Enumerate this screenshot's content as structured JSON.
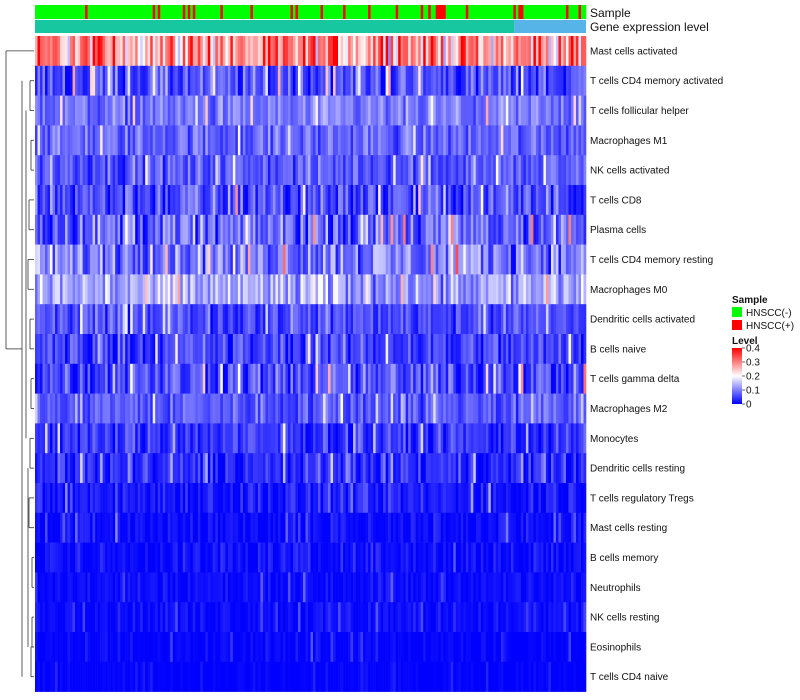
{
  "chart_data": {
    "type": "heatmap",
    "title": "",
    "column_annotations": [
      "Sample",
      "Gene expression level"
    ],
    "rows": [
      {
        "label": "Mast cells activated",
        "mean": 0.28,
        "spread": 0.12
      },
      {
        "label": "T cells CD4 memory activated",
        "mean": 0.06,
        "spread": 0.07
      },
      {
        "label": "T cells follicular helper",
        "mean": 0.09,
        "spread": 0.05
      },
      {
        "label": "Macrophages M1",
        "mean": 0.08,
        "spread": 0.05
      },
      {
        "label": "NK cells activated",
        "mean": 0.07,
        "spread": 0.05
      },
      {
        "label": "T cells CD8",
        "mean": 0.06,
        "spread": 0.08
      },
      {
        "label": "Plasma cells",
        "mean": 0.08,
        "spread": 0.09
      },
      {
        "label": "T cells CD4 memory resting",
        "mean": 0.1,
        "spread": 0.08
      },
      {
        "label": "Macrophages M0",
        "mean": 0.13,
        "spread": 0.08
      },
      {
        "label": "Dendritic cells activated",
        "mean": 0.06,
        "spread": 0.05
      },
      {
        "label": "B cells naive",
        "mean": 0.05,
        "spread": 0.06
      },
      {
        "label": "T cells gamma delta",
        "mean": 0.06,
        "spread": 0.07
      },
      {
        "label": "Macrophages M2",
        "mean": 0.07,
        "spread": 0.05
      },
      {
        "label": "Monocytes",
        "mean": 0.04,
        "spread": 0.05
      },
      {
        "label": "Dendritic cells resting",
        "mean": 0.03,
        "spread": 0.05
      },
      {
        "label": "T cells regulatory  Tregs",
        "mean": 0.02,
        "spread": 0.04
      },
      {
        "label": "Mast cells resting",
        "mean": 0.01,
        "spread": 0.03
      },
      {
        "label": "B cells memory",
        "mean": 0.01,
        "spread": 0.03
      },
      {
        "label": "Neutrophils",
        "mean": 0.01,
        "spread": 0.02
      },
      {
        "label": "NK cells resting",
        "mean": 0.01,
        "spread": 0.02
      },
      {
        "label": "Eosinophils",
        "mean": 0.0,
        "spread": 0.02
      },
      {
        "label": "T cells CD4 naive",
        "mean": 0.0,
        "spread": 0.01
      }
    ],
    "n_columns": 220,
    "value_range": [
      0,
      0.4
    ],
    "color_scale": [
      "#0000ff",
      "#ffffff",
      "#ff0000"
    ],
    "sample_groups": [
      {
        "name": "HNSCC(-)",
        "color": "#00ff00",
        "proportion": 0.85
      },
      {
        "name": "HNSCC(+)",
        "color": "#ff0000",
        "proportion": 0.15
      }
    ],
    "gene_expression_bar": [
      {
        "color": "#16c7a0",
        "proportion": 0.87
      },
      {
        "color": "#56b4e9",
        "proportion": 0.13
      }
    ],
    "legend": {
      "sample_title": "Sample",
      "level_title": "Level",
      "level_ticks": [
        "0.4",
        "0.3",
        "0.2",
        "0.1",
        "0"
      ],
      "level_tick_values": [
        0.4,
        0.3,
        0.2,
        0.1,
        0
      ],
      "position": "right"
    }
  }
}
